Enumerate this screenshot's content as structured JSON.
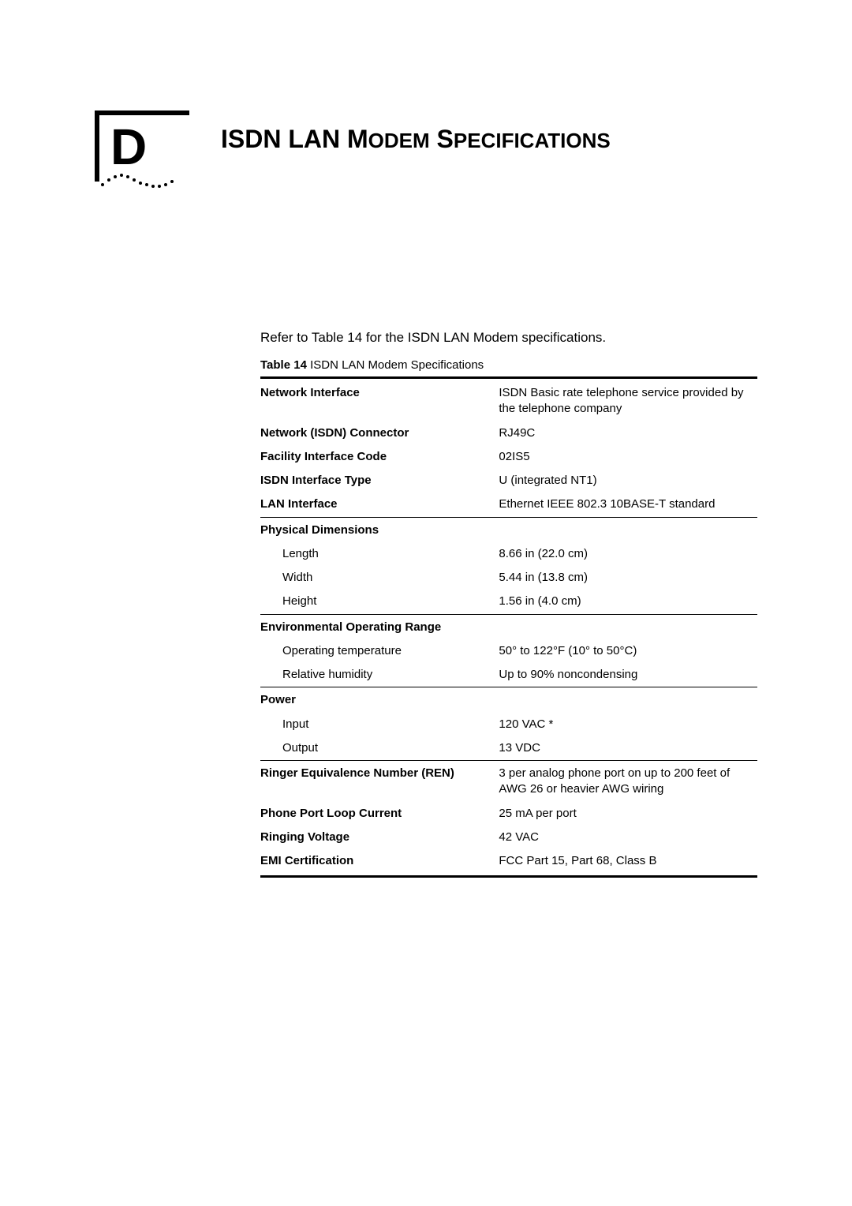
{
  "appendix_letter": "D",
  "title_parts": {
    "p1": "ISDN LAN M",
    "p2": "ODEM",
    "p3": " S",
    "p4": "PECIFICATIONS"
  },
  "intro": "Refer to Table 14 for the ISDN LAN Modem specifications.",
  "table_caption_label": "Table 14",
  "table_caption_text": "   ISDN LAN Modem Specifications",
  "rows": {
    "network_interface_label": "Network Interface",
    "network_interface_value": "ISDN Basic rate telephone service provided by the telephone company",
    "network_isdn_connector_label": "Network (ISDN) Connector",
    "network_isdn_connector_value": "RJ49C",
    "facility_interface_code_label": "Facility Interface Code",
    "facility_interface_code_value": "02IS5",
    "isdn_interface_type_label": "ISDN Interface Type",
    "isdn_interface_type_value": "U (integrated NT1)",
    "lan_interface_label": "LAN Interface",
    "lan_interface_value": "Ethernet IEEE 802.3 10BASE-T standard",
    "physical_dimensions_label": "Physical Dimensions",
    "length_label": "Length",
    "length_value": "8.66 in (22.0 cm)",
    "width_label": "Width",
    "width_value": "5.44 in (13.8 cm)",
    "height_label": "Height",
    "height_value": "1.56 in (4.0 cm)",
    "env_range_label": "Environmental Operating Range",
    "op_temp_label": "Operating temperature",
    "op_temp_value": " 50° to 122°F (10° to 50°C)",
    "rel_humidity_label": "Relative humidity",
    "rel_humidity_value": "Up to 90% noncondensing",
    "power_label": "Power",
    "input_label": "Input",
    "input_value": "120 VAC *",
    "output_label": "Output",
    "output_value": "13 VDC",
    "ren_label": "Ringer Equivalence Number (REN)",
    "ren_value": "3 per analog phone port on up to 200 feet of AWG 26 or heavier AWG wiring",
    "loop_current_label": "Phone Port Loop Current",
    "loop_current_value": "25 mA per port",
    "ringing_voltage_label": "Ringing Voltage",
    "ringing_voltage_value": "42 VAC",
    "emi_cert_label": "EMI Certification",
    "emi_cert_value": "FCC Part 15, Part 68, Class B"
  }
}
